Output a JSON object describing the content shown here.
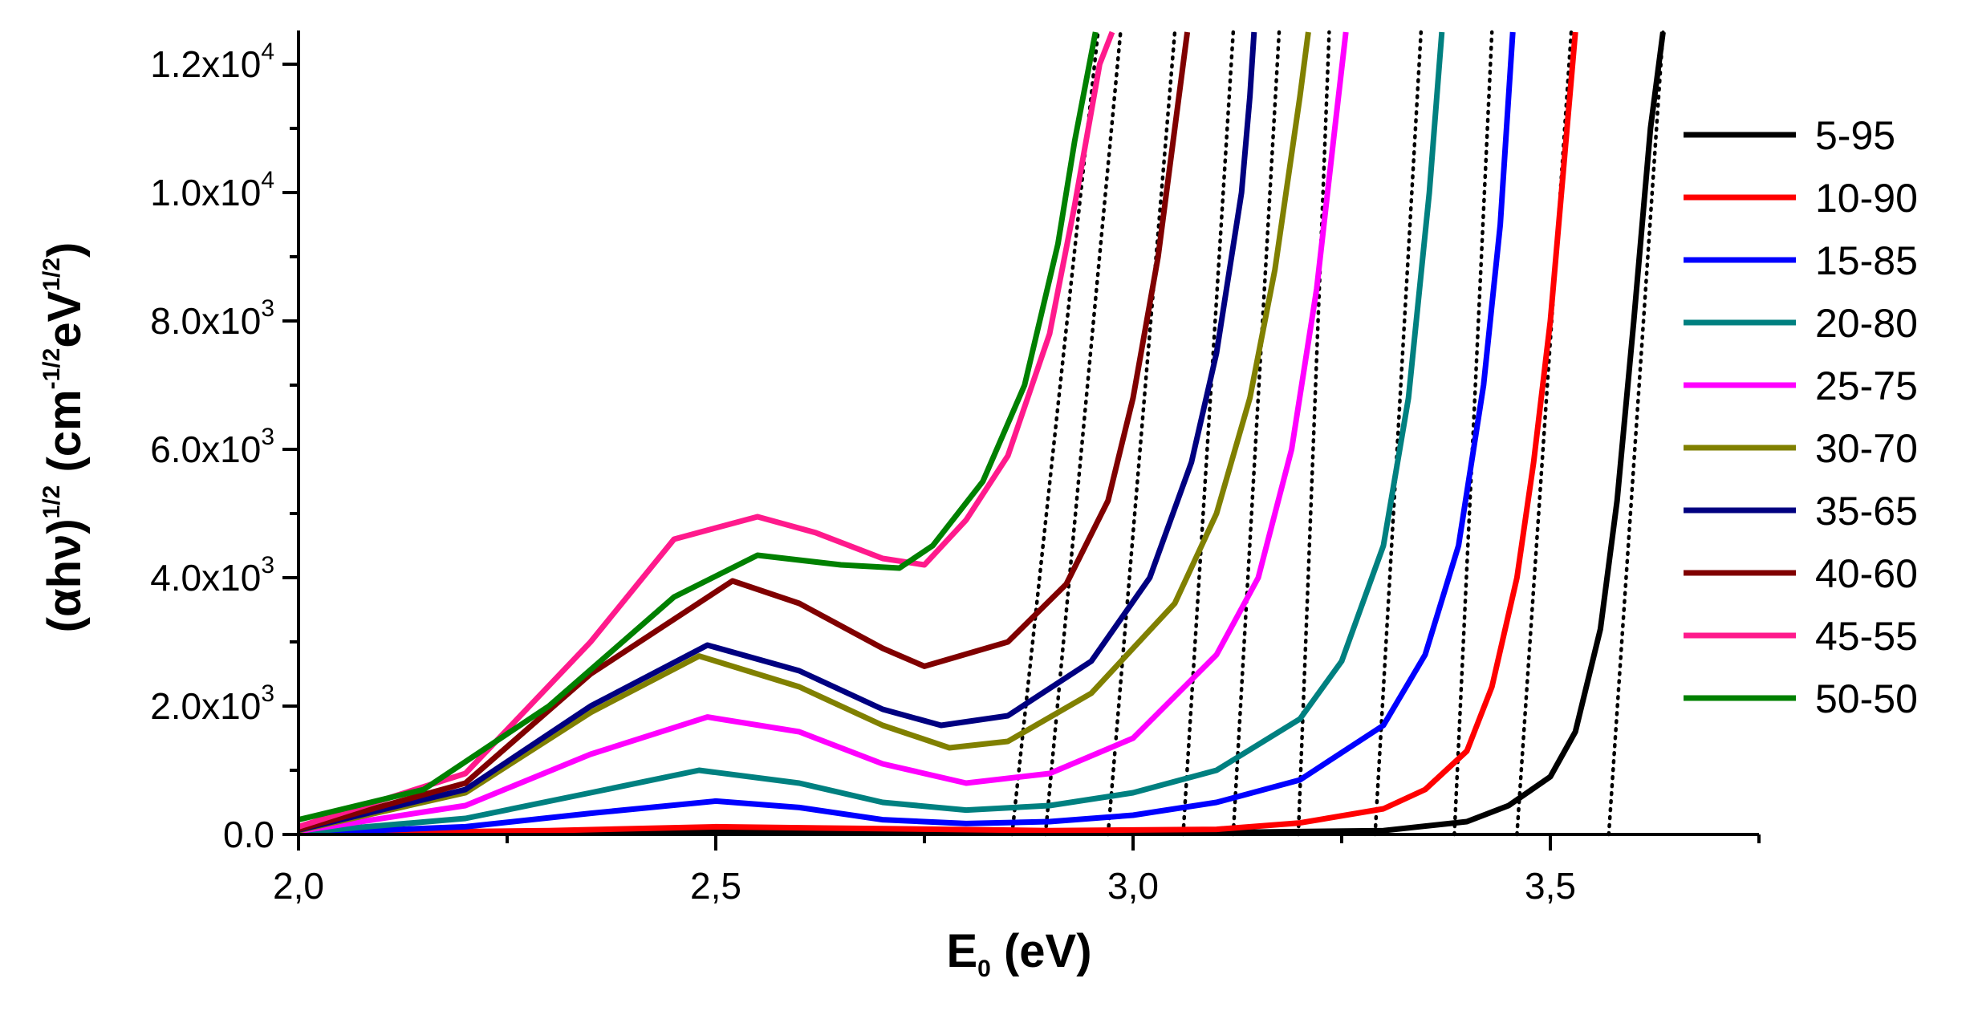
{
  "chart_data": {
    "type": "line",
    "title": "",
    "xlabel": {
      "main": "E",
      "sub": "0",
      "unit": " (eV)"
    },
    "ylabel": {
      "pre": "(αhν)",
      "pre_sup": "1/2",
      "units_open": " (cm",
      "cm_sup": "-1/2",
      "ev": "eV",
      "ev_sup": "1/2",
      "units_close": ")"
    },
    "xlim": [
      2.0,
      3.75
    ],
    "ylim": [
      0,
      12500
    ],
    "x_ticks": [
      {
        "value": 2.0,
        "label": "2,0"
      },
      {
        "value": 2.5,
        "label": "2,5"
      },
      {
        "value": 3.0,
        "label": "3,0"
      },
      {
        "value": 3.5,
        "label": "3,5"
      }
    ],
    "y_ticks": [
      {
        "value": 0,
        "mantissa": "0.0",
        "exp": ""
      },
      {
        "value": 2000,
        "mantissa": "2.0x10",
        "exp": "3"
      },
      {
        "value": 4000,
        "mantissa": "4.0x10",
        "exp": "3"
      },
      {
        "value": 6000,
        "mantissa": "6.0x10",
        "exp": "3"
      },
      {
        "value": 8000,
        "mantissa": "8.0x10",
        "exp": "3"
      },
      {
        "value": 10000,
        "mantissa": "1.0x10",
        "exp": "4"
      },
      {
        "value": 12000,
        "mantissa": "1.2x10",
        "exp": "4"
      }
    ],
    "legend_position": "right",
    "series": [
      {
        "name": "5-95",
        "color": "#000000",
        "points": [
          [
            2.0,
            10
          ],
          [
            2.3,
            30
          ],
          [
            2.5,
            50
          ],
          [
            2.7,
            40
          ],
          [
            2.9,
            30
          ],
          [
            3.1,
            30
          ],
          [
            3.3,
            60
          ],
          [
            3.4,
            200
          ],
          [
            3.45,
            450
          ],
          [
            3.5,
            900
          ],
          [
            3.53,
            1600
          ],
          [
            3.56,
            3200
          ],
          [
            3.58,
            5200
          ],
          [
            3.6,
            8000
          ],
          [
            3.62,
            11000
          ],
          [
            3.635,
            12600
          ]
        ]
      },
      {
        "name": "10-90",
        "color": "#ff0000",
        "points": [
          [
            2.0,
            15
          ],
          [
            2.3,
            60
          ],
          [
            2.5,
            120
          ],
          [
            2.7,
            90
          ],
          [
            2.9,
            60
          ],
          [
            3.1,
            80
          ],
          [
            3.2,
            180
          ],
          [
            3.3,
            400
          ],
          [
            3.35,
            700
          ],
          [
            3.4,
            1300
          ],
          [
            3.43,
            2300
          ],
          [
            3.46,
            4000
          ],
          [
            3.48,
            5800
          ],
          [
            3.5,
            8000
          ],
          [
            3.52,
            11000
          ],
          [
            3.53,
            12600
          ]
        ]
      },
      {
        "name": "15-85",
        "color": "#0000ff",
        "points": [
          [
            2.0,
            15
          ],
          [
            2.2,
            120
          ],
          [
            2.35,
            330
          ],
          [
            2.5,
            520
          ],
          [
            2.6,
            420
          ],
          [
            2.7,
            230
          ],
          [
            2.8,
            170
          ],
          [
            2.9,
            200
          ],
          [
            3.0,
            300
          ],
          [
            3.1,
            500
          ],
          [
            3.2,
            850
          ],
          [
            3.3,
            1700
          ],
          [
            3.35,
            2800
          ],
          [
            3.39,
            4500
          ],
          [
            3.42,
            7000
          ],
          [
            3.44,
            9500
          ],
          [
            3.455,
            12600
          ]
        ]
      },
      {
        "name": "20-80",
        "color": "#008080",
        "points": [
          [
            2.0,
            30
          ],
          [
            2.2,
            250
          ],
          [
            2.35,
            650
          ],
          [
            2.48,
            1000
          ],
          [
            2.6,
            800
          ],
          [
            2.7,
            500
          ],
          [
            2.8,
            380
          ],
          [
            2.9,
            450
          ],
          [
            3.0,
            650
          ],
          [
            3.1,
            1000
          ],
          [
            3.2,
            1800
          ],
          [
            3.25,
            2700
          ],
          [
            3.3,
            4500
          ],
          [
            3.33,
            6800
          ],
          [
            3.355,
            10000
          ],
          [
            3.37,
            12600
          ]
        ]
      },
      {
        "name": "25-75",
        "color": "#ff00ff",
        "points": [
          [
            2.0,
            50
          ],
          [
            2.2,
            450
          ],
          [
            2.35,
            1250
          ],
          [
            2.49,
            1830
          ],
          [
            2.6,
            1600
          ],
          [
            2.7,
            1100
          ],
          [
            2.8,
            800
          ],
          [
            2.9,
            950
          ],
          [
            3.0,
            1500
          ],
          [
            3.1,
            2800
          ],
          [
            3.15,
            4000
          ],
          [
            3.19,
            6000
          ],
          [
            3.22,
            8500
          ],
          [
            3.24,
            10800
          ],
          [
            3.255,
            12600
          ]
        ]
      },
      {
        "name": "30-70",
        "color": "#808000",
        "points": [
          [
            2.0,
            60
          ],
          [
            2.2,
            650
          ],
          [
            2.35,
            1900
          ],
          [
            2.48,
            2780
          ],
          [
            2.6,
            2300
          ],
          [
            2.7,
            1700
          ],
          [
            2.78,
            1350
          ],
          [
            2.85,
            1450
          ],
          [
            2.95,
            2200
          ],
          [
            3.05,
            3600
          ],
          [
            3.1,
            5000
          ],
          [
            3.14,
            6800
          ],
          [
            3.17,
            8800
          ],
          [
            3.2,
            11500
          ],
          [
            3.21,
            12600
          ]
        ]
      },
      {
        "name": "35-65",
        "color": "#000080",
        "points": [
          [
            2.0,
            70
          ],
          [
            2.2,
            700
          ],
          [
            2.35,
            2000
          ],
          [
            2.49,
            2950
          ],
          [
            2.6,
            2550
          ],
          [
            2.7,
            1950
          ],
          [
            2.77,
            1700
          ],
          [
            2.85,
            1850
          ],
          [
            2.95,
            2700
          ],
          [
            3.02,
            4000
          ],
          [
            3.07,
            5800
          ],
          [
            3.1,
            7500
          ],
          [
            3.13,
            10000
          ],
          [
            3.14,
            11500
          ],
          [
            3.145,
            12600
          ]
        ]
      },
      {
        "name": "40-60",
        "color": "#800000",
        "points": [
          [
            2.0,
            80
          ],
          [
            2.2,
            800
          ],
          [
            2.35,
            2500
          ],
          [
            2.52,
            3950
          ],
          [
            2.6,
            3600
          ],
          [
            2.7,
            2900
          ],
          [
            2.75,
            2620
          ],
          [
            2.85,
            3000
          ],
          [
            2.92,
            3900
          ],
          [
            2.97,
            5200
          ],
          [
            3.0,
            6800
          ],
          [
            3.03,
            9000
          ],
          [
            3.05,
            11000
          ],
          [
            3.065,
            12600
          ]
        ]
      },
      {
        "name": "45-55",
        "color": "#ff1a8c",
        "points": [
          [
            2.0,
            120
          ],
          [
            2.2,
            950
          ],
          [
            2.35,
            3000
          ],
          [
            2.45,
            4600
          ],
          [
            2.55,
            4950
          ],
          [
            2.62,
            4700
          ],
          [
            2.7,
            4300
          ],
          [
            2.75,
            4200
          ],
          [
            2.8,
            4900
          ],
          [
            2.85,
            5900
          ],
          [
            2.9,
            7800
          ],
          [
            2.93,
            9800
          ],
          [
            2.96,
            12000
          ],
          [
            2.975,
            12600
          ]
        ]
      },
      {
        "name": "50-50",
        "color": "#008000",
        "points": [
          [
            2.0,
            230
          ],
          [
            2.15,
            700
          ],
          [
            2.3,
            2000
          ],
          [
            2.45,
            3700
          ],
          [
            2.55,
            4350
          ],
          [
            2.65,
            4200
          ],
          [
            2.72,
            4150
          ],
          [
            2.76,
            4500
          ],
          [
            2.82,
            5500
          ],
          [
            2.87,
            7000
          ],
          [
            2.91,
            9200
          ],
          [
            2.93,
            10800
          ],
          [
            2.955,
            12600
          ]
        ]
      }
    ],
    "extrapolation_lines": [
      [
        [
          2.855,
          0
        ],
        [
          2.958,
          12600
        ]
      ],
      [
        [
          2.895,
          0
        ],
        [
          2.985,
          12600
        ]
      ],
      [
        [
          2.97,
          0
        ],
        [
          3.05,
          12600
        ]
      ],
      [
        [
          3.06,
          0
        ],
        [
          3.12,
          12600
        ]
      ],
      [
        [
          3.12,
          0
        ],
        [
          3.175,
          12600
        ]
      ],
      [
        [
          3.198,
          0
        ],
        [
          3.235,
          12600
        ]
      ],
      [
        [
          3.29,
          0
        ],
        [
          3.345,
          12600
        ]
      ],
      [
        [
          3.385,
          0
        ],
        [
          3.43,
          12600
        ]
      ],
      [
        [
          3.46,
          0
        ],
        [
          3.525,
          12600
        ]
      ],
      [
        [
          3.57,
          0
        ],
        [
          3.635,
          12600
        ]
      ]
    ]
  }
}
